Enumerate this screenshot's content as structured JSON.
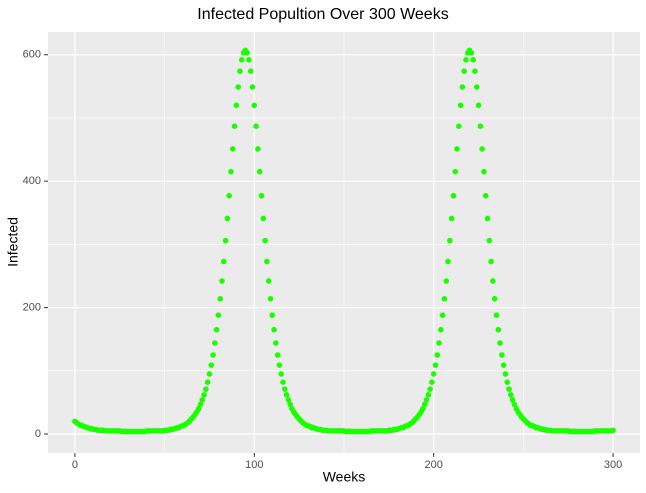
{
  "chart_data": {
    "type": "scatter",
    "title": "Infected Popultion Over 300 Weeks",
    "x_label": "Weeks",
    "y_label": "Infected",
    "color": "#1aff00",
    "grid": true,
    "xlim": [
      -15,
      315
    ],
    "ylim": [
      -30,
      636
    ],
    "xticks": [
      0,
      100,
      200,
      300
    ],
    "yticks": [
      0,
      200,
      400,
      600
    ],
    "x_minor": [
      50,
      150,
      250
    ],
    "y_minor": [
      100,
      300,
      500
    ],
    "x": [
      0,
      1,
      2,
      3,
      4,
      5,
      6,
      7,
      8,
      9,
      10,
      11,
      12,
      13,
      14,
      15,
      16,
      17,
      18,
      19,
      20,
      21,
      22,
      23,
      24,
      25,
      26,
      27,
      28,
      29,
      30,
      31,
      32,
      33,
      34,
      35,
      36,
      37,
      38,
      39,
      40,
      41,
      42,
      43,
      44,
      45,
      46,
      47,
      48,
      49,
      50,
      51,
      52,
      53,
      54,
      55,
      56,
      57,
      58,
      59,
      60,
      61,
      62,
      63,
      64,
      65,
      66,
      67,
      68,
      69,
      70,
      71,
      72,
      73,
      74,
      75,
      76,
      77,
      78,
      79,
      80,
      81,
      82,
      83,
      84,
      85,
      86,
      87,
      88,
      89,
      90,
      91,
      92,
      93,
      94,
      95,
      96,
      97,
      98,
      99,
      100,
      101,
      102,
      103,
      104,
      105,
      106,
      107,
      108,
      109,
      110,
      111,
      112,
      113,
      114,
      115,
      116,
      117,
      118,
      119,
      120,
      121,
      122,
      123,
      124,
      125,
      126,
      127,
      128,
      129,
      130,
      131,
      132,
      133,
      134,
      135,
      136,
      137,
      138,
      139,
      140,
      141,
      142,
      143,
      144,
      145,
      146,
      147,
      148,
      149,
      150,
      151,
      152,
      153,
      154,
      155,
      156,
      157,
      158,
      159,
      160,
      161,
      162,
      163,
      164,
      165,
      166,
      167,
      168,
      169,
      170,
      171,
      172,
      173,
      174,
      175,
      176,
      177,
      178,
      179,
      180,
      181,
      182,
      183,
      184,
      185,
      186,
      187,
      188,
      189,
      190,
      191,
      192,
      193,
      194,
      195,
      196,
      197,
      198,
      199,
      200,
      201,
      202,
      203,
      204,
      205,
      206,
      207,
      208,
      209,
      210,
      211,
      212,
      213,
      214,
      215,
      216,
      217,
      218,
      219,
      220,
      221,
      222,
      223,
      224,
      225,
      226,
      227,
      228,
      229,
      230,
      231,
      232,
      233,
      234,
      235,
      236,
      237,
      238,
      239,
      240,
      241,
      242,
      243,
      244,
      245,
      246,
      247,
      248,
      249,
      250,
      251,
      252,
      253,
      254,
      255,
      256,
      257,
      258,
      259,
      260,
      261,
      262,
      263,
      264,
      265,
      266,
      267,
      268,
      269,
      270,
      271,
      272,
      273,
      274,
      275,
      276,
      277,
      278,
      279,
      280,
      281,
      282,
      283,
      284,
      285,
      286,
      287,
      288,
      289,
      290,
      291,
      292,
      293,
      294,
      295,
      296,
      297,
      298,
      299,
      300
    ],
    "values": [
      20,
      18,
      16,
      14,
      13,
      12,
      11,
      10,
      9,
      8,
      8,
      7,
      7,
      6,
      6,
      6,
      6,
      5,
      5,
      5,
      5,
      5,
      5,
      5,
      5,
      5,
      4,
      4,
      4,
      4,
      4,
      4,
      4,
      4,
      4,
      4,
      4,
      4,
      4,
      4,
      5,
      5,
      5,
      5,
      5,
      5,
      5,
      5,
      5,
      5,
      6,
      6,
      6,
      7,
      7,
      8,
      9,
      10,
      10,
      12,
      13,
      14,
      16,
      18,
      21,
      24,
      27,
      31,
      35,
      40,
      47,
      54,
      62,
      71,
      82,
      95,
      109,
      125,
      144,
      165,
      188,
      214,
      242,
      273,
      306,
      341,
      377,
      415,
      451,
      487,
      520,
      549,
      574,
      592,
      603,
      607,
      603,
      592,
      574,
      549,
      520,
      487,
      451,
      415,
      377,
      341,
      306,
      273,
      242,
      214,
      188,
      165,
      144,
      125,
      109,
      95,
      82,
      71,
      62,
      54,
      47,
      40,
      35,
      31,
      27,
      24,
      21,
      18,
      16,
      14,
      13,
      12,
      10,
      10,
      9,
      8,
      7,
      7,
      6,
      6,
      6,
      5,
      5,
      5,
      5,
      5,
      5,
      5,
      5,
      5,
      5,
      4,
      4,
      4,
      4,
      4,
      4,
      4,
      4,
      4,
      4,
      4,
      4,
      4,
      4,
      5,
      5,
      5,
      5,
      5,
      5,
      5,
      5,
      5,
      5,
      6,
      6,
      6,
      7,
      7,
      8,
      9,
      10,
      10,
      12,
      13,
      14,
      16,
      18,
      21,
      24,
      27,
      31,
      35,
      40,
      47,
      54,
      62,
      71,
      82,
      95,
      109,
      125,
      144,
      165,
      188,
      214,
      242,
      273,
      306,
      341,
      377,
      415,
      451,
      487,
      520,
      549,
      574,
      592,
      603,
      607,
      603,
      592,
      574,
      549,
      520,
      487,
      451,
      415,
      377,
      341,
      306,
      273,
      242,
      214,
      188,
      165,
      144,
      125,
      109,
      95,
      82,
      71,
      62,
      54,
      47,
      40,
      35,
      31,
      27,
      24,
      21,
      18,
      16,
      14,
      13,
      12,
      10,
      10,
      9,
      8,
      7,
      7,
      6,
      6,
      6,
      5,
      5,
      5,
      5,
      5,
      5,
      5,
      5,
      5,
      5,
      4,
      4,
      4,
      4,
      4,
      4,
      4,
      4,
      4,
      4,
      4,
      4,
      4,
      4,
      5,
      5,
      5,
      5,
      5,
      5,
      5,
      5,
      5,
      5,
      6
    ]
  }
}
